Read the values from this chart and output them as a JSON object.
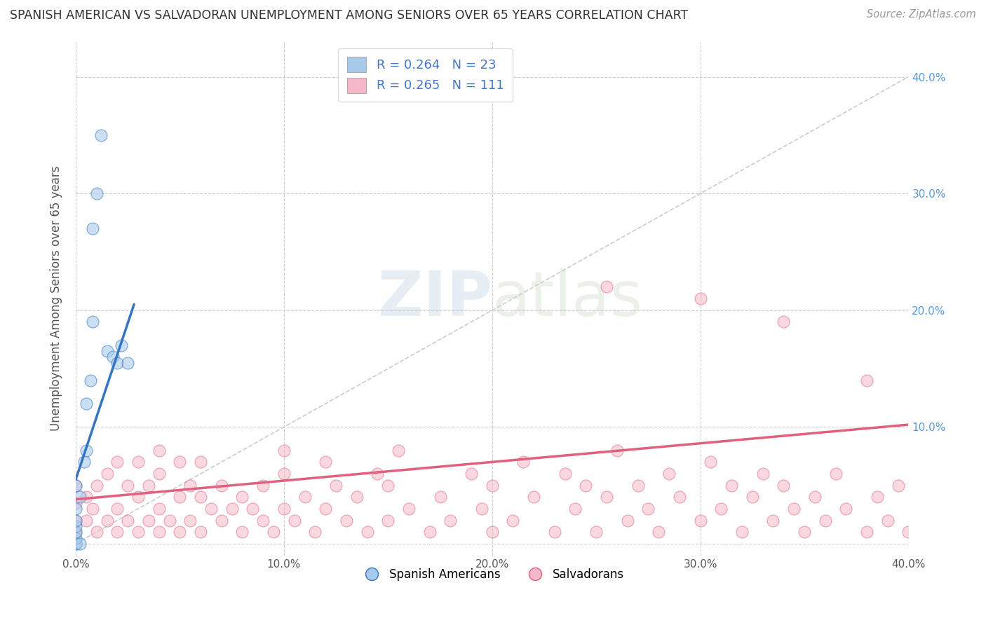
{
  "title": "SPANISH AMERICAN VS SALVADORAN UNEMPLOYMENT AMONG SENIORS OVER 65 YEARS CORRELATION CHART",
  "source": "Source: ZipAtlas.com",
  "ylabel": "Unemployment Among Seniors over 65 years",
  "xlim": [
    0.0,
    0.4
  ],
  "ylim": [
    -0.01,
    0.43
  ],
  "yticks": [
    0.0,
    0.1,
    0.2,
    0.3,
    0.4
  ],
  "xticks": [
    0.0,
    0.1,
    0.2,
    0.3,
    0.4
  ],
  "xtick_labels": [
    "0.0%",
    "10.0%",
    "20.0%",
    "30.0%",
    "40.0%"
  ],
  "right_ytick_labels": [
    "",
    "10.0%",
    "20.0%",
    "30.0%",
    "40.0%"
  ],
  "color_blue": "#A8CAEA",
  "color_pink": "#F5B8C8",
  "line_blue": "#3575C2",
  "line_pink": "#E0607E",
  "diag_color": "#CCCCCC",
  "spanish_americans_x": [
    0.0,
    0.0,
    0.0,
    0.0,
    0.0,
    0.0,
    0.0,
    0.0,
    0.002,
    0.002,
    0.004,
    0.005,
    0.005,
    0.007,
    0.008,
    0.008,
    0.01,
    0.012,
    0.015,
    0.018,
    0.02,
    0.022,
    0.025
  ],
  "spanish_americans_y": [
    0.0,
    0.0,
    0.005,
    0.01,
    0.015,
    0.02,
    0.03,
    0.05,
    0.0,
    0.04,
    0.07,
    0.08,
    0.12,
    0.14,
    0.19,
    0.27,
    0.3,
    0.35,
    0.165,
    0.16,
    0.155,
    0.17,
    0.155
  ],
  "salvadorans_x": [
    0.0,
    0.0,
    0.0,
    0.0,
    0.005,
    0.005,
    0.008,
    0.01,
    0.01,
    0.015,
    0.015,
    0.02,
    0.02,
    0.02,
    0.025,
    0.025,
    0.03,
    0.03,
    0.03,
    0.035,
    0.035,
    0.04,
    0.04,
    0.04,
    0.04,
    0.045,
    0.05,
    0.05,
    0.05,
    0.055,
    0.055,
    0.06,
    0.06,
    0.06,
    0.065,
    0.07,
    0.07,
    0.075,
    0.08,
    0.08,
    0.085,
    0.09,
    0.09,
    0.095,
    0.1,
    0.1,
    0.1,
    0.105,
    0.11,
    0.115,
    0.12,
    0.12,
    0.125,
    0.13,
    0.135,
    0.14,
    0.145,
    0.15,
    0.15,
    0.155,
    0.16,
    0.17,
    0.175,
    0.18,
    0.19,
    0.195,
    0.2,
    0.2,
    0.21,
    0.215,
    0.22,
    0.23,
    0.235,
    0.24,
    0.245,
    0.25,
    0.255,
    0.26,
    0.265,
    0.27,
    0.275,
    0.28,
    0.285,
    0.29,
    0.3,
    0.305,
    0.31,
    0.315,
    0.32,
    0.325,
    0.33,
    0.335,
    0.34,
    0.345,
    0.35,
    0.355,
    0.36,
    0.365,
    0.37,
    0.38,
    0.385,
    0.39,
    0.395,
    0.4,
    0.255,
    0.3,
    0.34,
    0.38
  ],
  "salvadorans_y": [
    0.01,
    0.02,
    0.035,
    0.05,
    0.02,
    0.04,
    0.03,
    0.01,
    0.05,
    0.02,
    0.06,
    0.01,
    0.03,
    0.07,
    0.02,
    0.05,
    0.01,
    0.04,
    0.07,
    0.02,
    0.05,
    0.01,
    0.03,
    0.06,
    0.08,
    0.02,
    0.01,
    0.04,
    0.07,
    0.02,
    0.05,
    0.01,
    0.04,
    0.07,
    0.03,
    0.02,
    0.05,
    0.03,
    0.01,
    0.04,
    0.03,
    0.02,
    0.05,
    0.01,
    0.03,
    0.06,
    0.08,
    0.02,
    0.04,
    0.01,
    0.03,
    0.07,
    0.05,
    0.02,
    0.04,
    0.01,
    0.06,
    0.02,
    0.05,
    0.08,
    0.03,
    0.01,
    0.04,
    0.02,
    0.06,
    0.03,
    0.01,
    0.05,
    0.02,
    0.07,
    0.04,
    0.01,
    0.06,
    0.03,
    0.05,
    0.01,
    0.04,
    0.08,
    0.02,
    0.05,
    0.03,
    0.01,
    0.06,
    0.04,
    0.02,
    0.07,
    0.03,
    0.05,
    0.01,
    0.04,
    0.06,
    0.02,
    0.05,
    0.03,
    0.01,
    0.04,
    0.02,
    0.06,
    0.03,
    0.01,
    0.04,
    0.02,
    0.05,
    0.01,
    0.22,
    0.21,
    0.19,
    0.14
  ],
  "blue_trend_x": [
    0.0,
    0.028
  ],
  "blue_trend_y": [
    0.055,
    0.205
  ],
  "pink_trend_x": [
    0.0,
    0.4
  ],
  "pink_trend_y": [
    0.038,
    0.102
  ]
}
